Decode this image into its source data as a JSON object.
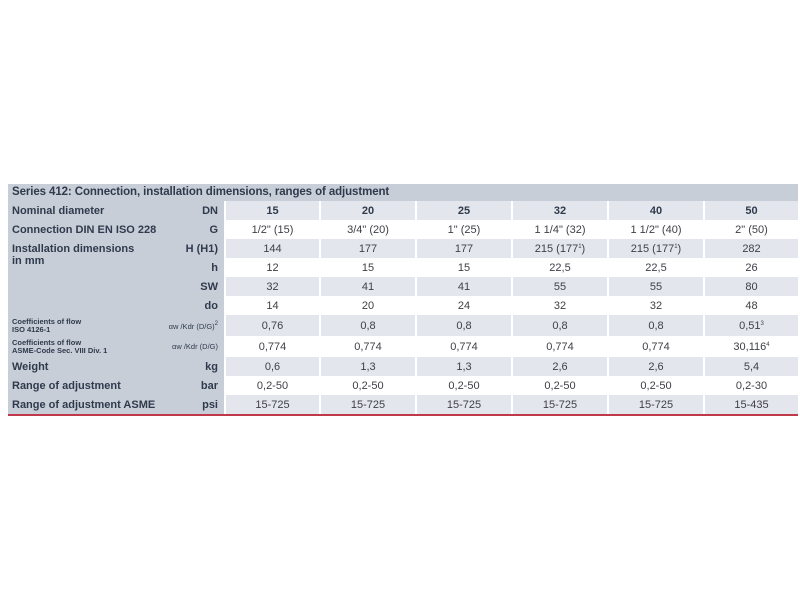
{
  "title": "Series 412: Connection, installation dimensions, ranges of adjustment",
  "header": {
    "label": "Nominal diameter",
    "unit": "DN",
    "values": [
      "15",
      "20",
      "25",
      "32",
      "40",
      "50"
    ]
  },
  "rows": [
    {
      "label": "Connection DIN EN ISO 228",
      "unit": "G",
      "values": [
        "1/2\" (15)",
        "3/4\" (20)",
        "1\" (25)",
        "1 1/4\" (32)",
        "1 1/2\" (40)",
        "2\" (50)"
      ]
    },
    {
      "label_line1": "Installation dimensions",
      "label_line2": "in mm",
      "unit": "H (H1)",
      "values": [
        "144",
        "177",
        "177",
        "215 (177",
        "215 (177",
        "282"
      ],
      "sup": [
        "",
        "",
        "",
        "1",
        "1",
        ""
      ],
      "suffix": [
        "",
        "",
        "",
        ")",
        ")",
        ""
      ]
    },
    {
      "label": "",
      "unit": "h",
      "values": [
        "12",
        "15",
        "15",
        "22,5",
        "22,5",
        "26"
      ]
    },
    {
      "label": "",
      "unit": "SW",
      "values": [
        "32",
        "41",
        "41",
        "55",
        "55",
        "80"
      ]
    },
    {
      "label": "",
      "unit": "do",
      "values": [
        "14",
        "20",
        "24",
        "32",
        "32",
        "48"
      ]
    },
    {
      "label_line1": "Coefficients of flow",
      "label_line2": "ISO 4126-1",
      "unit": "αw /Kdr (D/G)",
      "unit_sup": "2",
      "values": [
        "0,76",
        "0,8",
        "0,8",
        "0,8",
        "0,8",
        "0,51"
      ],
      "sup": [
        "",
        "",
        "",
        "",
        "",
        "3"
      ]
    },
    {
      "label_line1": "Coefficients of flow",
      "label_line2": "ASME-Code Sec. VIII Div. 1",
      "unit": "αw /Kdr (D/G)",
      "values": [
        "0,774",
        "0,774",
        "0,774",
        "0,774",
        "0,774",
        "30,116"
      ],
      "sup": [
        "",
        "",
        "",
        "",
        "",
        "4"
      ]
    },
    {
      "label": "Weight",
      "unit": "kg",
      "values": [
        "0,6",
        "1,3",
        "1,3",
        "2,6",
        "2,6",
        "5,4"
      ]
    },
    {
      "label": "Range of adjustment",
      "unit": "bar",
      "values": [
        "0,2-50",
        "0,2-50",
        "0,2-50",
        "0,2-50",
        "0,2-50",
        "0,2-30"
      ]
    },
    {
      "label": "Range of adjustment ASME",
      "unit": "psi",
      "values": [
        "15-725",
        "15-725",
        "15-725",
        "15-725",
        "15-725",
        "15-435"
      ]
    }
  ],
  "colors": {
    "header_bg": "#c7ced8",
    "alt_bg": "#e3e7ed",
    "rule": "#c0394b",
    "text": "#2f3a4c"
  }
}
